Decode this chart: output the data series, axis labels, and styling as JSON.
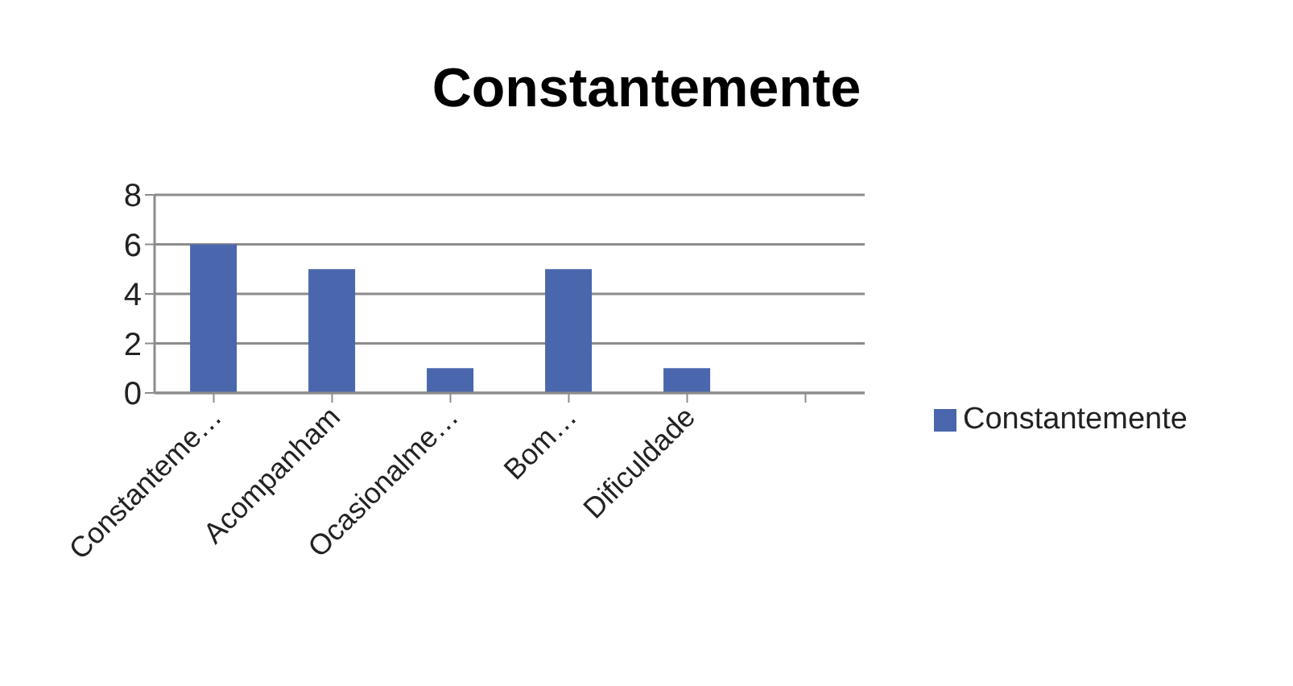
{
  "chart_data": {
    "type": "bar",
    "title": "Constantemente",
    "categories": [
      "Constanteme…",
      "Acompanham",
      "Ocasionalme…",
      "Bom…",
      "Dificuldade",
      null
    ],
    "series": [
      {
        "name": "Constantemente",
        "color": "#4a66ac",
        "values": [
          6,
          5,
          1,
          5,
          1,
          null
        ]
      }
    ],
    "ylim": [
      0,
      8
    ],
    "yticks": [
      0,
      2,
      4,
      6,
      8
    ],
    "grid": "y",
    "legend": "right"
  }
}
